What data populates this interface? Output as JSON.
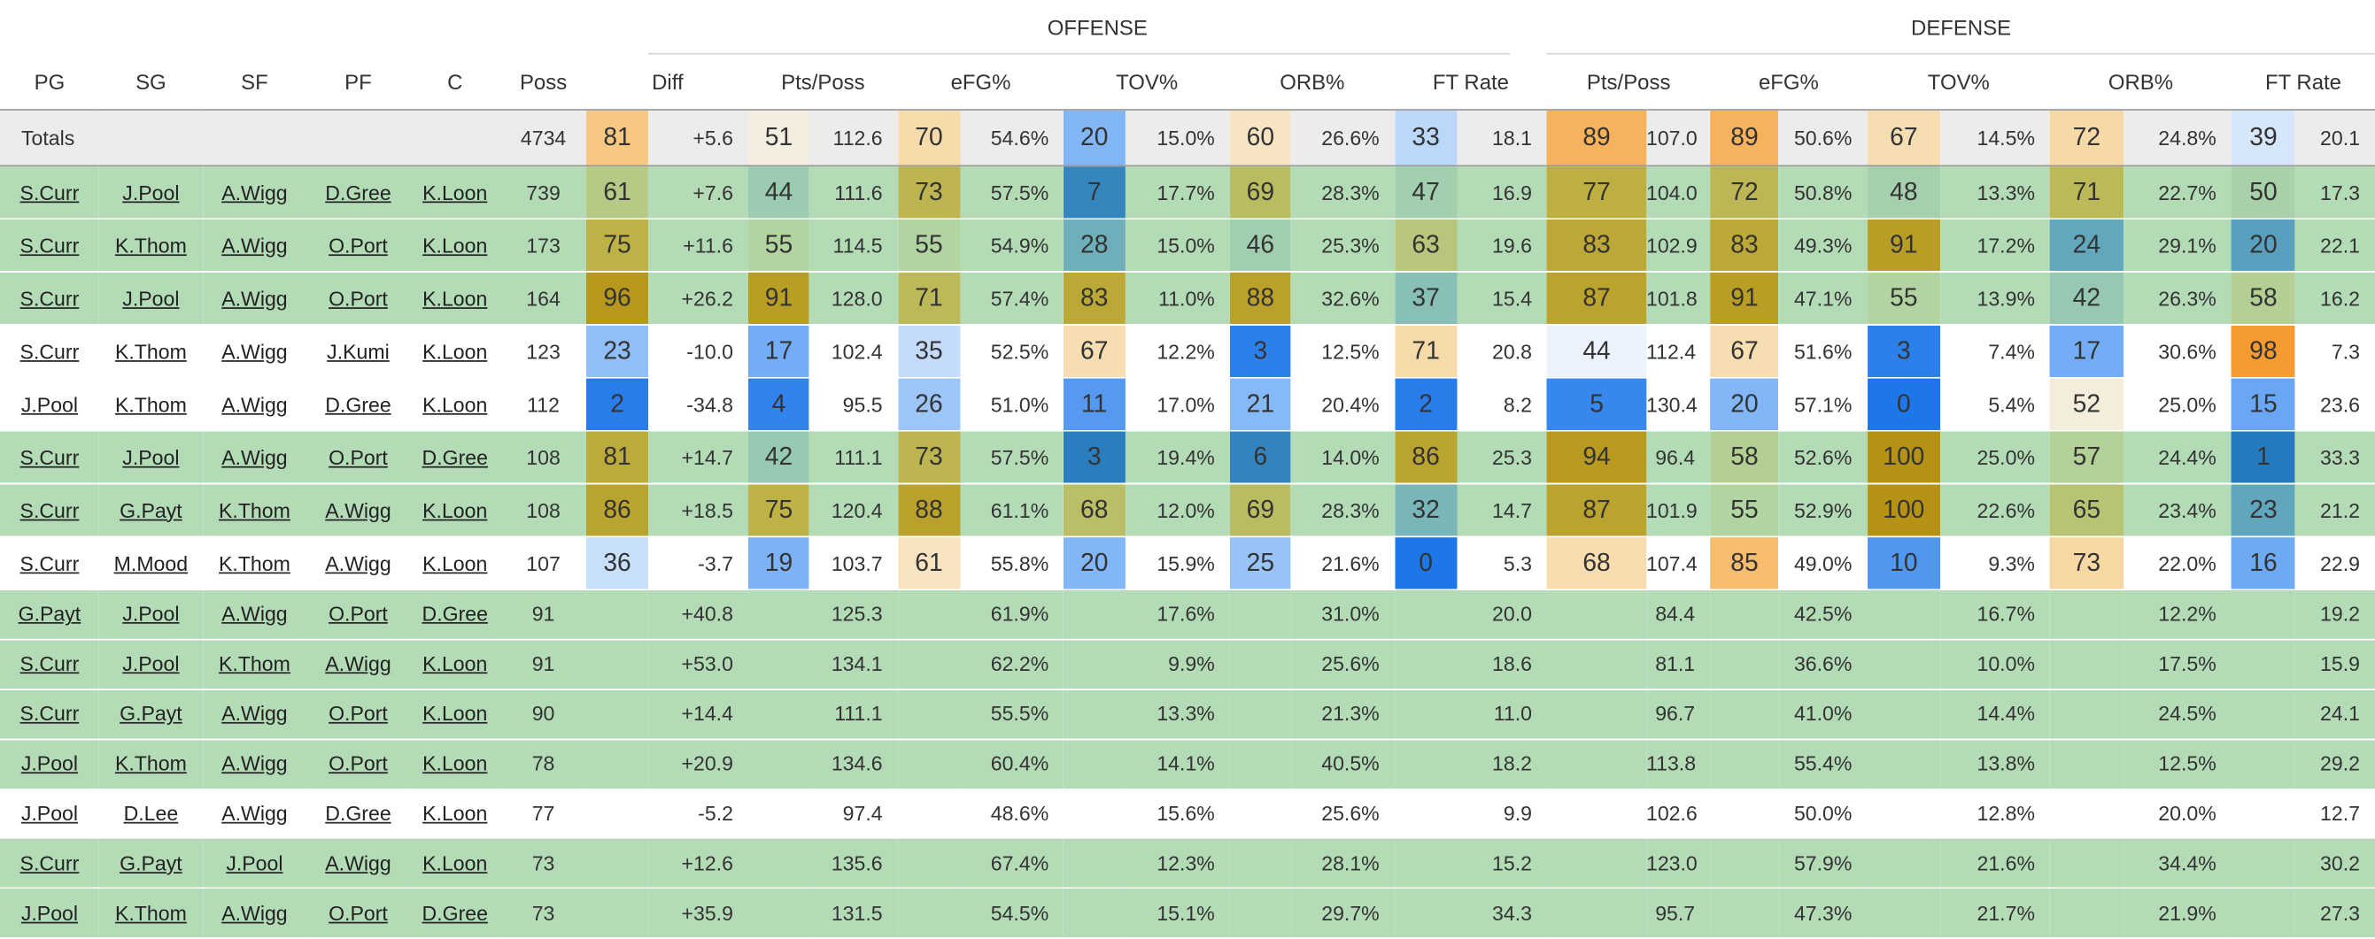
{
  "headers": {
    "group_offense": "OFFENSE",
    "group_defense": "DEFENSE",
    "columns": [
      "PG",
      "SG",
      "SF",
      "PF",
      "C",
      "Poss",
      "Diff",
      "Pts/Poss",
      "eFG%",
      "TOV%",
      "ORB%",
      "FT Rate",
      "Pts/Poss",
      "eFG%",
      "TOV%",
      "ORB%",
      "FT Rate"
    ]
  },
  "colors": {
    "row_green": "#b3dbb6",
    "row_white": "#ffffff",
    "totals_bg": "#ececec"
  },
  "totals": {
    "label": "Totals",
    "poss": "4734",
    "diff_rank": "81",
    "diff": "+5.6",
    "o_pts_rank": "51",
    "o_pts": "112.6",
    "o_efg_rank": "70",
    "o_efg": "54.6%",
    "o_tov_rank": "20",
    "o_tov": "15.0%",
    "o_orb_rank": "60",
    "o_orb": "26.6%",
    "o_ft_rank": "33",
    "o_ft": "18.1",
    "d_pts_rank": "89",
    "d_pts": "107.0",
    "d_efg_rank": "89",
    "d_efg": "50.6%",
    "d_tov_rank": "67",
    "d_tov": "14.5%",
    "d_orb_rank": "72",
    "d_orb": "24.8%",
    "d_ft_rank": "39",
    "d_ft": "20.1"
  },
  "rows": [
    {
      "bg": "green",
      "pg": "S.Curr",
      "sg": "J.Pool",
      "sf": "A.Wigg",
      "pf": "D.Gree",
      "c": "K.Loon",
      "poss": "739",
      "diff_rank": "61",
      "diff": "+7.6",
      "o_pts_rank": "44",
      "o_pts": "111.6",
      "o_efg_rank": "73",
      "o_efg": "57.5%",
      "o_tov_rank": "7",
      "o_tov": "17.7%",
      "o_orb_rank": "69",
      "o_orb": "28.3%",
      "o_ft_rank": "47",
      "o_ft": "16.9",
      "d_pts_rank": "77",
      "d_pts": "104.0",
      "d_efg_rank": "72",
      "d_efg": "50.8%",
      "d_tov_rank": "48",
      "d_tov": "13.3%",
      "d_orb_rank": "71",
      "d_orb": "22.7%",
      "d_ft_rank": "50",
      "d_ft": "17.3"
    },
    {
      "bg": "green",
      "pg": "S.Curr",
      "sg": "K.Thom",
      "sf": "A.Wigg",
      "pf": "O.Port",
      "c": "K.Loon",
      "poss": "173",
      "diff_rank": "75",
      "diff": "+11.6",
      "o_pts_rank": "55",
      "o_pts": "114.5",
      "o_efg_rank": "55",
      "o_efg": "54.9%",
      "o_tov_rank": "28",
      "o_tov": "15.0%",
      "o_orb_rank": "46",
      "o_orb": "25.3%",
      "o_ft_rank": "63",
      "o_ft": "19.6",
      "d_pts_rank": "83",
      "d_pts": "102.9",
      "d_efg_rank": "83",
      "d_efg": "49.3%",
      "d_tov_rank": "91",
      "d_tov": "17.2%",
      "d_orb_rank": "24",
      "d_orb": "29.1%",
      "d_ft_rank": "20",
      "d_ft": "22.1"
    },
    {
      "bg": "green",
      "pg": "S.Curr",
      "sg": "J.Pool",
      "sf": "A.Wigg",
      "pf": "O.Port",
      "c": "K.Loon",
      "poss": "164",
      "diff_rank": "96",
      "diff": "+26.2",
      "o_pts_rank": "91",
      "o_pts": "128.0",
      "o_efg_rank": "71",
      "o_efg": "57.4%",
      "o_tov_rank": "83",
      "o_tov": "11.0%",
      "o_orb_rank": "88",
      "o_orb": "32.6%",
      "o_ft_rank": "37",
      "o_ft": "15.4",
      "d_pts_rank": "87",
      "d_pts": "101.8",
      "d_efg_rank": "91",
      "d_efg": "47.1%",
      "d_tov_rank": "55",
      "d_tov": "13.9%",
      "d_orb_rank": "42",
      "d_orb": "26.3%",
      "d_ft_rank": "58",
      "d_ft": "16.2"
    },
    {
      "bg": "white",
      "pg": "S.Curr",
      "sg": "K.Thom",
      "sf": "A.Wigg",
      "pf": "J.Kumi",
      "c": "K.Loon",
      "poss": "123",
      "diff_rank": "23",
      "diff": "-10.0",
      "o_pts_rank": "17",
      "o_pts": "102.4",
      "o_efg_rank": "35",
      "o_efg": "52.5%",
      "o_tov_rank": "67",
      "o_tov": "12.2%",
      "o_orb_rank": "3",
      "o_orb": "12.5%",
      "o_ft_rank": "71",
      "o_ft": "20.8",
      "d_pts_rank": "44",
      "d_pts": "112.4",
      "d_efg_rank": "67",
      "d_efg": "51.6%",
      "d_tov_rank": "3",
      "d_tov": "7.4%",
      "d_orb_rank": "17",
      "d_orb": "30.6%",
      "d_ft_rank": "98",
      "d_ft": "7.3"
    },
    {
      "bg": "white",
      "pg": "J.Pool",
      "sg": "K.Thom",
      "sf": "A.Wigg",
      "pf": "D.Gree",
      "c": "K.Loon",
      "poss": "112",
      "diff_rank": "2",
      "diff": "-34.8",
      "o_pts_rank": "4",
      "o_pts": "95.5",
      "o_efg_rank": "26",
      "o_efg": "51.0%",
      "o_tov_rank": "11",
      "o_tov": "17.0%",
      "o_orb_rank": "21",
      "o_orb": "20.4%",
      "o_ft_rank": "2",
      "o_ft": "8.2",
      "d_pts_rank": "5",
      "d_pts": "130.4",
      "d_efg_rank": "20",
      "d_efg": "57.1%",
      "d_tov_rank": "0",
      "d_tov": "5.4%",
      "d_orb_rank": "52",
      "d_orb": "25.0%",
      "d_ft_rank": "15",
      "d_ft": "23.6"
    },
    {
      "bg": "green",
      "pg": "S.Curr",
      "sg": "J.Pool",
      "sf": "A.Wigg",
      "pf": "O.Port",
      "c": "D.Gree",
      "poss": "108",
      "diff_rank": "81",
      "diff": "+14.7",
      "o_pts_rank": "42",
      "o_pts": "111.1",
      "o_efg_rank": "73",
      "o_efg": "57.5%",
      "o_tov_rank": "3",
      "o_tov": "19.4%",
      "o_orb_rank": "6",
      "o_orb": "14.0%",
      "o_ft_rank": "86",
      "o_ft": "25.3",
      "d_pts_rank": "94",
      "d_pts": "96.4",
      "d_efg_rank": "58",
      "d_efg": "52.6%",
      "d_tov_rank": "100",
      "d_tov": "25.0%",
      "d_orb_rank": "57",
      "d_orb": "24.4%",
      "d_ft_rank": "1",
      "d_ft": "33.3"
    },
    {
      "bg": "green",
      "pg": "S.Curr",
      "sg": "G.Payt",
      "sf": "K.Thom",
      "pf": "A.Wigg",
      "c": "K.Loon",
      "poss": "108",
      "diff_rank": "86",
      "diff": "+18.5",
      "o_pts_rank": "75",
      "o_pts": "120.4",
      "o_efg_rank": "88",
      "o_efg": "61.1%",
      "o_tov_rank": "68",
      "o_tov": "12.0%",
      "o_orb_rank": "69",
      "o_orb": "28.3%",
      "o_ft_rank": "32",
      "o_ft": "14.7",
      "d_pts_rank": "87",
      "d_pts": "101.9",
      "d_efg_rank": "55",
      "d_efg": "52.9%",
      "d_tov_rank": "100",
      "d_tov": "22.6%",
      "d_orb_rank": "65",
      "d_orb": "23.4%",
      "d_ft_rank": "23",
      "d_ft": "21.2"
    },
    {
      "bg": "white",
      "pg": "S.Curr",
      "sg": "M.Mood",
      "sf": "K.Thom",
      "pf": "A.Wigg",
      "c": "K.Loon",
      "poss": "107",
      "diff_rank": "36",
      "diff": "-3.7",
      "o_pts_rank": "19",
      "o_pts": "103.7",
      "o_efg_rank": "61",
      "o_efg": "55.8%",
      "o_tov_rank": "20",
      "o_tov": "15.9%",
      "o_orb_rank": "25",
      "o_orb": "21.6%",
      "o_ft_rank": "0",
      "o_ft": "5.3",
      "d_pts_rank": "68",
      "d_pts": "107.4",
      "d_efg_rank": "85",
      "d_efg": "49.0%",
      "d_tov_rank": "10",
      "d_tov": "9.3%",
      "d_orb_rank": "73",
      "d_orb": "22.0%",
      "d_ft_rank": "16",
      "d_ft": "22.9"
    },
    {
      "bg": "green",
      "pg": "G.Payt",
      "sg": "J.Pool",
      "sf": "A.Wigg",
      "pf": "O.Port",
      "c": "D.Gree",
      "poss": "91",
      "diff": "+40.8",
      "o_pts": "125.3",
      "o_efg": "61.9%",
      "o_tov": "17.6%",
      "o_orb": "31.0%",
      "o_ft": "20.0",
      "d_pts": "84.4",
      "d_efg": "42.5%",
      "d_tov": "16.7%",
      "d_orb": "12.2%",
      "d_ft": "19.2"
    },
    {
      "bg": "green",
      "pg": "S.Curr",
      "sg": "J.Pool",
      "sf": "K.Thom",
      "pf": "A.Wigg",
      "c": "K.Loon",
      "poss": "91",
      "diff": "+53.0",
      "o_pts": "134.1",
      "o_efg": "62.2%",
      "o_tov": "9.9%",
      "o_orb": "25.6%",
      "o_ft": "18.6",
      "d_pts": "81.1",
      "d_efg": "36.6%",
      "d_tov": "10.0%",
      "d_orb": "17.5%",
      "d_ft": "15.9"
    },
    {
      "bg": "green",
      "pg": "S.Curr",
      "sg": "G.Payt",
      "sf": "A.Wigg",
      "pf": "O.Port",
      "c": "K.Loon",
      "poss": "90",
      "diff": "+14.4",
      "o_pts": "111.1",
      "o_efg": "55.5%",
      "o_tov": "13.3%",
      "o_orb": "21.3%",
      "o_ft": "11.0",
      "d_pts": "96.7",
      "d_efg": "41.0%",
      "d_tov": "14.4%",
      "d_orb": "24.5%",
      "d_ft": "24.1"
    },
    {
      "bg": "green",
      "pg": "J.Pool",
      "sg": "K.Thom",
      "sf": "A.Wigg",
      "pf": "O.Port",
      "c": "K.Loon",
      "poss": "78",
      "diff": "+20.9",
      "o_pts": "134.6",
      "o_efg": "60.4%",
      "o_tov": "14.1%",
      "o_orb": "40.5%",
      "o_ft": "18.2",
      "d_pts": "113.8",
      "d_efg": "55.4%",
      "d_tov": "13.8%",
      "d_orb": "12.5%",
      "d_ft": "29.2"
    },
    {
      "bg": "white",
      "pg": "J.Pool",
      "sg": "D.Lee",
      "sf": "A.Wigg",
      "pf": "D.Gree",
      "c": "K.Loon",
      "poss": "77",
      "diff": "-5.2",
      "o_pts": "97.4",
      "o_efg": "48.6%",
      "o_tov": "15.6%",
      "o_orb": "25.6%",
      "o_ft": "9.9",
      "d_pts": "102.6",
      "d_efg": "50.0%",
      "d_tov": "12.8%",
      "d_orb": "20.0%",
      "d_ft": "12.7"
    },
    {
      "bg": "green",
      "pg": "S.Curr",
      "sg": "G.Payt",
      "sf": "J.Pool",
      "pf": "A.Wigg",
      "c": "K.Loon",
      "poss": "73",
      "diff": "+12.6",
      "o_pts": "135.6",
      "o_efg": "67.4%",
      "o_tov": "12.3%",
      "o_orb": "28.1%",
      "o_ft": "15.2",
      "d_pts": "123.0",
      "d_efg": "57.9%",
      "d_tov": "21.6%",
      "d_orb": "34.4%",
      "d_ft": "30.2"
    },
    {
      "bg": "green",
      "pg": "J.Pool",
      "sg": "K.Thom",
      "sf": "A.Wigg",
      "pf": "O.Port",
      "c": "D.Gree",
      "poss": "73",
      "diff": "+35.9",
      "o_pts": "131.5",
      "o_efg": "54.5%",
      "o_tov": "15.1%",
      "o_orb": "29.7%",
      "o_ft": "34.3",
      "d_pts": "95.7",
      "d_efg": "47.3%",
      "d_tov": "21.7%",
      "d_orb": "21.9%",
      "d_ft": "27.3"
    }
  ]
}
